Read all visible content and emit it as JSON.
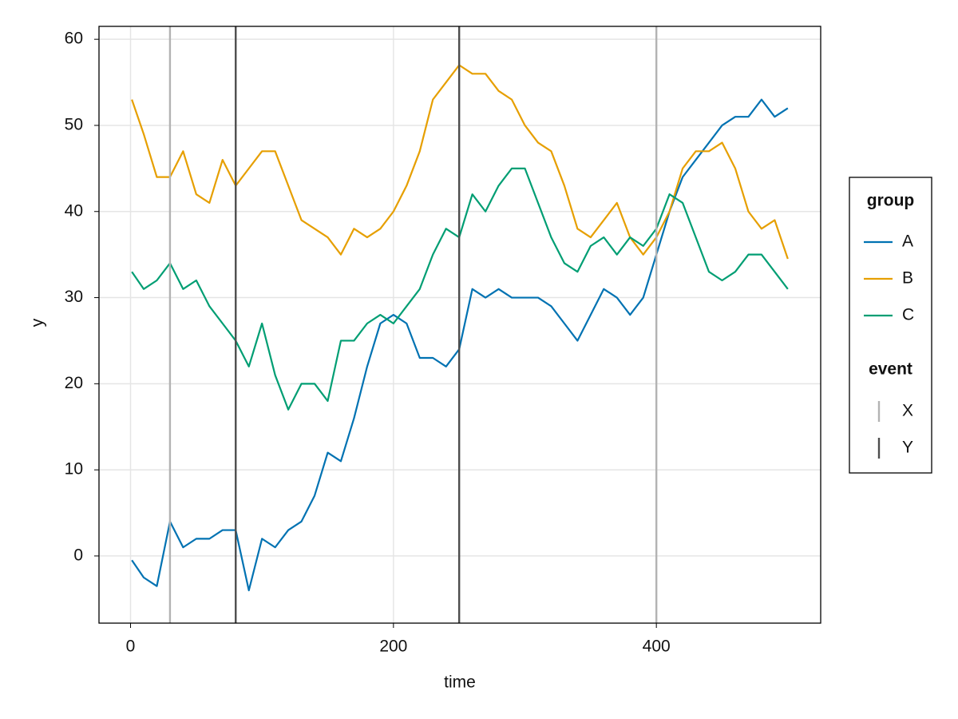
{
  "chart_data": {
    "type": "line",
    "x_label": "time",
    "y_label": "y",
    "x": [
      1,
      10,
      20,
      30,
      40,
      50,
      60,
      70,
      80,
      90,
      100,
      110,
      120,
      130,
      140,
      150,
      160,
      170,
      180,
      190,
      200,
      210,
      220,
      230,
      240,
      250,
      260,
      270,
      280,
      290,
      300,
      310,
      320,
      330,
      340,
      350,
      360,
      370,
      380,
      390,
      400,
      410,
      420,
      430,
      440,
      450,
      460,
      470,
      480,
      490,
      500
    ],
    "series": [
      {
        "name": "A",
        "color": "#0072b2",
        "values": [
          -0.5,
          -2.5,
          -3.5,
          4,
          1,
          2,
          2,
          3,
          3,
          -4,
          2,
          1,
          3,
          4,
          7,
          12,
          11,
          16,
          22,
          27,
          28,
          27,
          23,
          23,
          22,
          24,
          31,
          30,
          31,
          30,
          30,
          30,
          29,
          27,
          25,
          28,
          31,
          30,
          28,
          30,
          35,
          40,
          44,
          46,
          48,
          50,
          51,
          51,
          53,
          51,
          52
        ]
      },
      {
        "name": "B",
        "color": "#e69f00",
        "values": [
          53,
          49,
          44,
          44,
          47,
          42,
          41,
          46,
          43,
          45,
          47,
          47,
          43,
          39,
          38,
          37,
          35,
          38,
          37,
          38,
          40,
          43,
          47,
          53,
          55,
          57,
          56,
          56,
          54,
          53,
          50,
          48,
          47,
          43,
          38,
          37,
          39,
          41,
          37,
          35,
          37,
          40,
          45,
          47,
          47,
          48,
          45,
          40,
          38,
          39,
          34.5
        ]
      },
      {
        "name": "C",
        "color": "#009e73",
        "values": [
          33,
          31,
          32,
          34,
          31,
          32,
          29,
          27,
          25,
          22,
          27,
          21,
          17,
          20,
          20,
          18,
          25,
          25,
          27,
          28,
          27,
          29,
          31,
          35,
          38,
          37,
          42,
          40,
          43,
          45,
          45,
          41,
          37,
          34,
          33,
          36,
          37,
          35,
          37,
          36,
          38,
          42,
          41,
          37,
          33,
          32,
          33,
          35,
          35,
          33,
          31
        ]
      }
    ],
    "events": [
      {
        "name": "X",
        "color": "#b3b3b3",
        "x": [
          30,
          400
        ]
      },
      {
        "name": "Y",
        "color": "#4d4d4d",
        "x": [
          80,
          250
        ]
      }
    ],
    "legend_title": "group",
    "event_legend_title": "event",
    "legend": "right",
    "xlim": [
      -24,
      525
    ],
    "xticks": [
      0,
      200,
      400
    ],
    "ylim": [
      -7.8,
      61.5
    ],
    "yticks": [
      0,
      10,
      20,
      30,
      40,
      50,
      60
    ],
    "grid": true
  }
}
